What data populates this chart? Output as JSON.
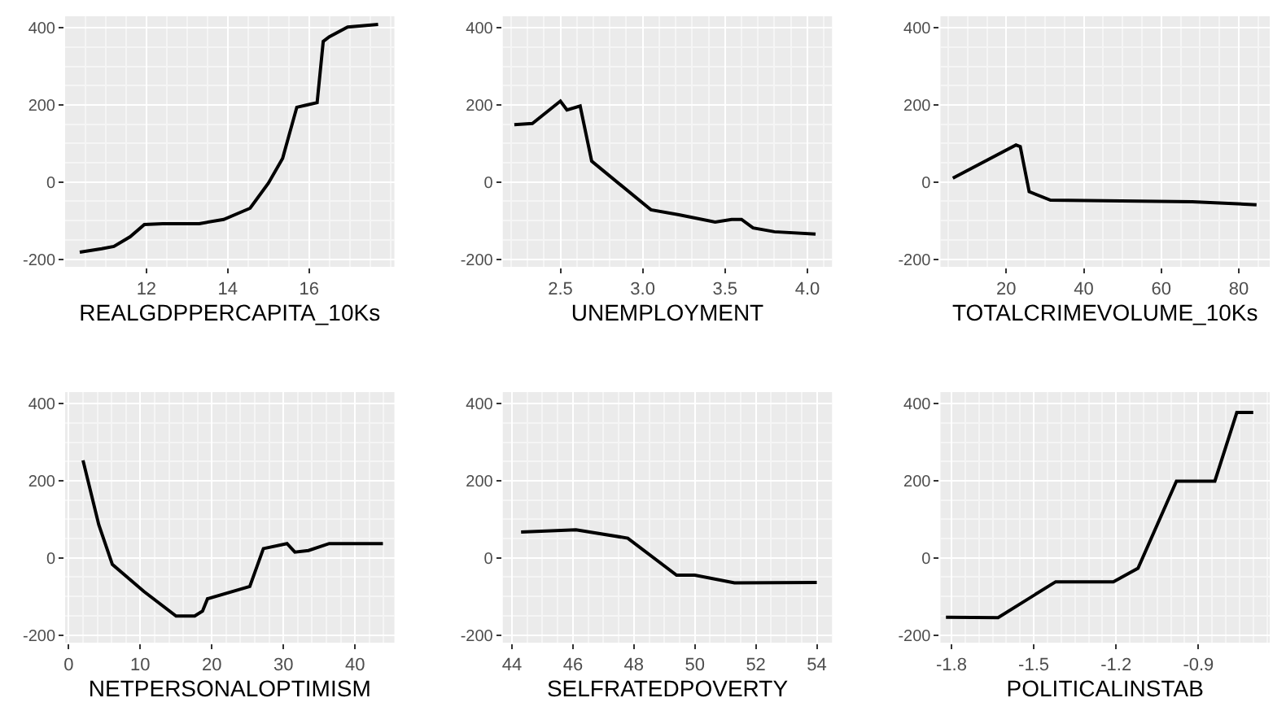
{
  "chart_data": [
    {
      "type": "line",
      "xlabel": "REALGDPPERCAPITA_10Ks",
      "xlim": [
        10.0,
        18.1
      ],
      "xticks": [
        12,
        14,
        16
      ],
      "ylim": [
        -220,
        430
      ],
      "yticks": [
        -200,
        0,
        200,
        400
      ],
      "grid": true,
      "series": [
        {
          "color": "#000000",
          "x": [
            10.36,
            10.9,
            11.2,
            11.6,
            11.95,
            12.4,
            13.3,
            13.9,
            14.55,
            15.0,
            15.35,
            15.7,
            15.95,
            16.2,
            16.35,
            16.5,
            16.95,
            17.7
          ],
          "values": [
            -182,
            -173,
            -167,
            -142,
            -110,
            -108,
            -108,
            -97,
            -68,
            -3,
            61,
            194,
            200,
            206,
            365,
            377,
            402,
            409
          ]
        }
      ]
    },
    {
      "type": "line",
      "xlabel": "UNEMPLOYMENT",
      "xlim": [
        2.15,
        4.15
      ],
      "xticks": [
        2.5,
        {
          "value": 3,
          "label": "3.0"
        },
        3.5,
        {
          "value": 4,
          "label": "4.0"
        }
      ],
      "ylim": [
        -220,
        430
      ],
      "yticks": [
        -200,
        0,
        200,
        400
      ],
      "grid": true,
      "series": [
        {
          "color": "#000000",
          "x": [
            2.22,
            2.33,
            2.5,
            2.54,
            2.62,
            2.69,
            3.05,
            3.22,
            3.44,
            3.54,
            3.6,
            3.67,
            3.8,
            4.05
          ],
          "values": [
            149,
            152,
            210,
            187,
            197,
            54,
            -72,
            -85,
            -104,
            -97,
            -97,
            -119,
            -129,
            -135
          ]
        }
      ]
    },
    {
      "type": "line",
      "xlabel": "TOTALCRIMEVOLUME_10Ks",
      "xlim": [
        3,
        88
      ],
      "xticks": [
        20,
        40,
        60,
        80
      ],
      "ylim": [
        -220,
        430
      ],
      "yticks": [
        -200,
        0,
        200,
        400
      ],
      "grid": true,
      "series": [
        {
          "color": "#000000",
          "x": [
            6.2,
            22.5,
            23.6,
            25.9,
            31.4,
            68,
            84.6
          ],
          "values": [
            10,
            96,
            92,
            -25,
            -47,
            -51,
            -59
          ]
        }
      ]
    },
    {
      "type": "line",
      "xlabel": "NETPERSONALOPTIMISM",
      "xlim": [
        -0.5,
        45.5
      ],
      "xticks": [
        0,
        10,
        20,
        30,
        40
      ],
      "ylim": [
        -220,
        430
      ],
      "yticks": [
        -200,
        0,
        200,
        400
      ],
      "grid": true,
      "series": [
        {
          "color": "#000000",
          "x": [
            2.0,
            4.2,
            6.1,
            10.5,
            15,
            17.6,
            18.7,
            19.4,
            25.3,
            27.2,
            30.5,
            31.6,
            33.5,
            36.4,
            43.9
          ],
          "values": [
            253,
            86,
            -17,
            -87,
            -151,
            -151,
            -138,
            -106,
            -74,
            24,
            37,
            15,
            19,
            37,
            37
          ]
        }
      ]
    },
    {
      "type": "line",
      "xlabel": "SELFRATEDPOVERTY",
      "xlim": [
        43.7,
        54.5
      ],
      "xticks": [
        44,
        46,
        48,
        50,
        52,
        54
      ],
      "ylim": [
        -220,
        430
      ],
      "yticks": [
        -200,
        0,
        200,
        400
      ],
      "grid": true,
      "series": [
        {
          "color": "#000000",
          "x": [
            44.3,
            46.1,
            47.8,
            49.4,
            50,
            51.3,
            54.0
          ],
          "values": [
            67,
            73,
            51,
            -45,
            -45,
            -65,
            -64
          ]
        }
      ]
    },
    {
      "type": "line",
      "xlabel": "POLITICALINSTAB",
      "xlim": [
        -1.84,
        -0.64
      ],
      "xticks": [
        -1.8,
        -1.5,
        -1.2,
        -0.9
      ],
      "ylim": [
        -220,
        430
      ],
      "yticks": [
        -200,
        0,
        200,
        400
      ],
      "grid": true,
      "series": [
        {
          "color": "#000000",
          "x": [
            -1.82,
            -1.63,
            -1.42,
            -1.21,
            -1.12,
            -0.98,
            -0.84,
            -0.76,
            -0.7
          ],
          "values": [
            -154,
            -155,
            -62,
            -62,
            -27,
            199,
            199,
            377,
            377
          ]
        }
      ]
    }
  ]
}
